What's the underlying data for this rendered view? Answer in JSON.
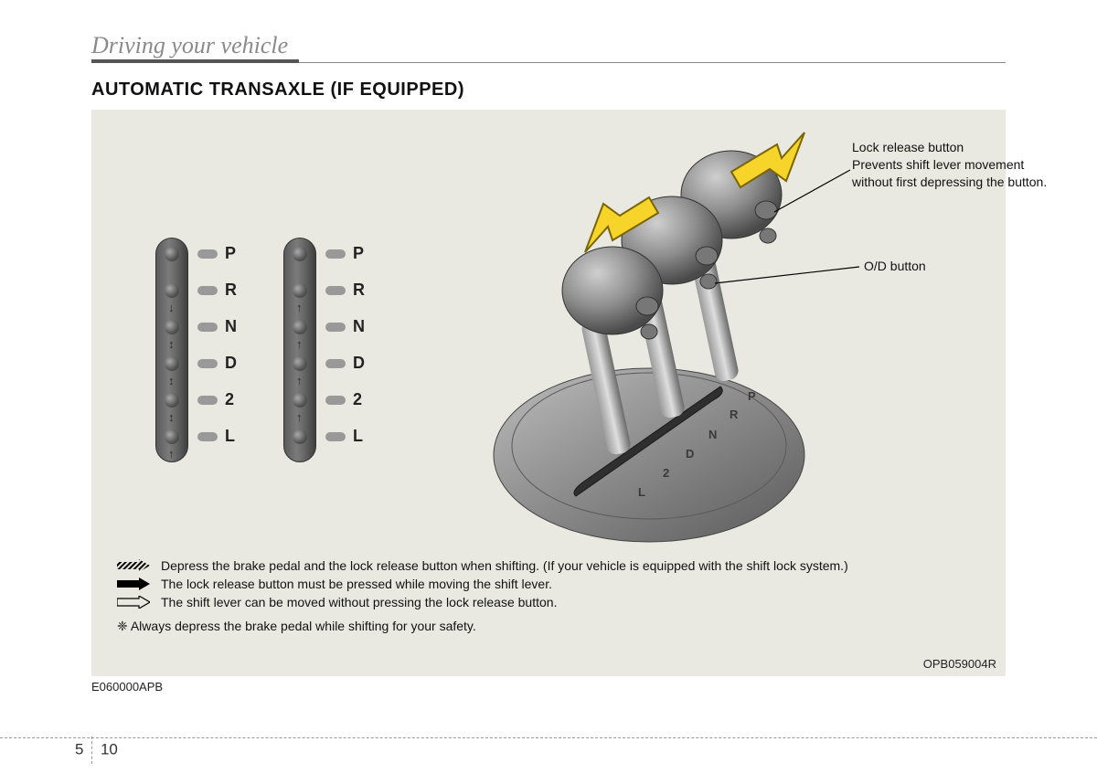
{
  "chapter_title": "Driving your vehicle",
  "section_title": "AUTOMATIC TRANSAXLE (IF EQUIPPED)",
  "gear_positions": [
    "P",
    "R",
    "N",
    "D",
    "2",
    "L"
  ],
  "gear_col1_arrows": [
    "",
    "↓",
    "↕",
    "↕",
    "↕",
    "↑"
  ],
  "gear_col2_arrows": [
    "",
    "↑",
    "↑",
    "↑",
    "↑",
    ""
  ],
  "gear_colors": {
    "track_gradient": [
      "#5a5a5a",
      "#7b7b7b",
      "#6a6a6a",
      "#3f3f3f"
    ],
    "dot_light": "#aaaaaa",
    "dot_dark": "#333333",
    "pill": "#999999",
    "label": "#222222"
  },
  "shifter_plate_labels": [
    "P",
    "R",
    "N",
    "D",
    "2",
    "L"
  ],
  "callouts": {
    "lock_release": {
      "title": "Lock release button",
      "desc": "Prevents shift lever movement without first depressing the button."
    },
    "od": {
      "title": "O/D button"
    }
  },
  "legend": {
    "hatched": "Depress the brake pedal and the lock release button when shifting. (If your vehicle is equipped with the shift lock system.)",
    "solid_arrow": "The lock release button must be pressed while moving the shift lever.",
    "hollow_arrow": "The shift lever can be moved without pressing the lock release button.",
    "safety": "❈ Always depress the brake pedal while shifting for your safety."
  },
  "figure_code_right": "OPB059004R",
  "figure_code_left": "E060000APB",
  "page": {
    "chapter": "5",
    "num": "10"
  },
  "colors": {
    "page_bg": "#ffffff",
    "figure_bg": "#e9e9e2",
    "chapter_text": "#8a8a8a",
    "rule": "#888888",
    "arrow_yellow": "#f6d42a",
    "arrow_yellow_stroke": "#7a6500"
  }
}
